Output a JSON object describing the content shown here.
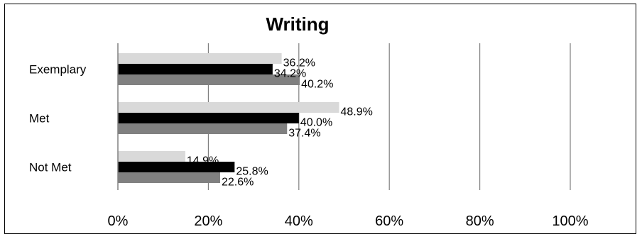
{
  "chart_data": {
    "type": "bar",
    "orientation": "horizontal",
    "title": "Writing",
    "categories": [
      "Exemplary",
      "Met",
      "Not Met"
    ],
    "series": [
      {
        "values": [
          36.2,
          48.9,
          14.9
        ],
        "labels": [
          "36.2%",
          "48.9%",
          "14.9%"
        ],
        "color": "#d9d9d9"
      },
      {
        "values": [
          34.2,
          40.0,
          25.8
        ],
        "labels": [
          "34.2%",
          "40.0%",
          "25.8%"
        ],
        "color": "#000000"
      },
      {
        "values": [
          40.2,
          37.4,
          22.6
        ],
        "labels": [
          "40.2%",
          "37.4%",
          "22.6%"
        ],
        "color": "#808080"
      }
    ],
    "xlim": [
      0,
      100
    ],
    "xticks": [
      "0%",
      "20%",
      "40%",
      "60%",
      "80%",
      "100%"
    ],
    "xtick_values": [
      0,
      20,
      40,
      60,
      80,
      100
    ],
    "grid": "vertical",
    "legend": "none"
  }
}
